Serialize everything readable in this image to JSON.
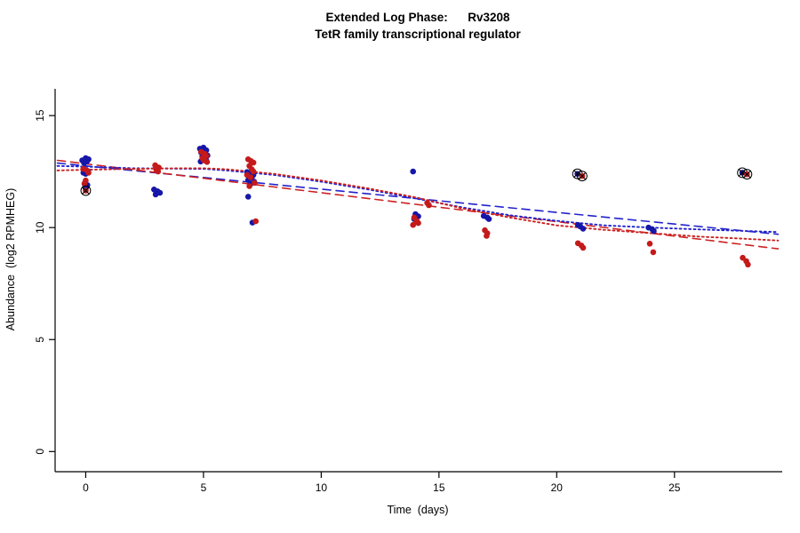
{
  "title": "Extended Log Phase:      Rv3208",
  "subtitle": "TetR family transcriptional regulator",
  "chart_data": {
    "type": "scatter",
    "title": "Extended Log Phase:      Rv3208",
    "subtitle": "TetR family transcriptional regulator",
    "xlabel": "Time  (days)",
    "ylabel": "Abundance  (log2 RPMHEG)",
    "xlim": [
      -1.3,
      29.5
    ],
    "ylim": [
      -0.9,
      17.9
    ],
    "xticks": [
      0,
      5,
      10,
      15,
      20,
      25
    ],
    "yticks": [
      0,
      5,
      10,
      15
    ],
    "grid": false,
    "legend": "none",
    "colors": {
      "blue": "#1616a8",
      "red": "#c41a1a",
      "blue_line": "#2222cc",
      "red_line": "#cc2222",
      "outlier_stroke": "#000000",
      "axis": "#000000"
    },
    "series": [
      {
        "name": "blue-points",
        "color_key": "blue",
        "points": [
          [
            -0.15,
            13.0
          ],
          [
            0.0,
            13.1
          ],
          [
            0.12,
            13.05
          ],
          [
            0.05,
            12.95
          ],
          [
            -0.07,
            12.88
          ],
          [
            0.1,
            12.5
          ],
          [
            -0.1,
            12.45
          ],
          [
            0.0,
            12.4
          ],
          [
            -0.05,
            11.95
          ],
          [
            0.07,
            11.9
          ],
          [
            0.0,
            11.72
          ],
          [
            2.9,
            11.7
          ],
          [
            3.05,
            11.62
          ],
          [
            3.15,
            11.55
          ],
          [
            2.97,
            11.48
          ],
          [
            4.85,
            13.52
          ],
          [
            5.0,
            13.57
          ],
          [
            5.12,
            13.45
          ],
          [
            4.9,
            13.35
          ],
          [
            5.05,
            13.3
          ],
          [
            5.17,
            13.22
          ],
          [
            4.95,
            13.18
          ],
          [
            5.02,
            13.08
          ],
          [
            5.12,
            13.0
          ],
          [
            4.88,
            12.95
          ],
          [
            6.85,
            12.48
          ],
          [
            7.0,
            12.42
          ],
          [
            7.12,
            12.35
          ],
          [
            6.95,
            12.3
          ],
          [
            7.05,
            12.22
          ],
          [
            6.9,
            12.12
          ],
          [
            7.15,
            12.05
          ],
          [
            7.0,
            11.95
          ],
          [
            6.9,
            11.38
          ],
          [
            7.08,
            10.22
          ],
          [
            13.9,
            12.5
          ],
          [
            14.0,
            10.6
          ],
          [
            14.12,
            10.5
          ],
          [
            13.95,
            10.38
          ],
          [
            16.9,
            10.52
          ],
          [
            17.05,
            10.45
          ],
          [
            17.12,
            10.38
          ],
          [
            20.9,
            10.12
          ],
          [
            21.0,
            10.05
          ],
          [
            21.12,
            9.95
          ],
          [
            23.9,
            10.0
          ],
          [
            24.05,
            9.93
          ],
          [
            24.12,
            9.85
          ]
        ]
      },
      {
        "name": "red-points",
        "color_key": "red",
        "points": [
          [
            -0.1,
            12.62
          ],
          [
            0.05,
            12.55
          ],
          [
            0.12,
            12.45
          ],
          [
            0.0,
            12.1
          ],
          [
            -0.05,
            11.97
          ],
          [
            2.95,
            12.78
          ],
          [
            3.1,
            12.68
          ],
          [
            3.0,
            12.58
          ],
          [
            3.07,
            12.5
          ],
          [
            4.9,
            13.38
          ],
          [
            5.05,
            13.3
          ],
          [
            5.12,
            13.2
          ],
          [
            4.95,
            13.1
          ],
          [
            5.02,
            13.0
          ],
          [
            5.15,
            12.93
          ],
          [
            6.9,
            13.05
          ],
          [
            7.02,
            12.97
          ],
          [
            7.12,
            12.9
          ],
          [
            6.95,
            12.75
          ],
          [
            7.05,
            12.6
          ],
          [
            7.12,
            12.5
          ],
          [
            6.85,
            12.35
          ],
          [
            7.0,
            12.25
          ],
          [
            7.17,
            12.0
          ],
          [
            6.95,
            11.85
          ],
          [
            7.22,
            10.28
          ],
          [
            14.5,
            11.1
          ],
          [
            14.57,
            11.0
          ],
          [
            13.95,
            10.45
          ],
          [
            14.05,
            10.3
          ],
          [
            14.12,
            10.2
          ],
          [
            13.9,
            10.12
          ],
          [
            16.95,
            9.88
          ],
          [
            17.05,
            9.75
          ],
          [
            17.02,
            9.63
          ],
          [
            20.9,
            9.3
          ],
          [
            21.05,
            9.2
          ],
          [
            21.12,
            9.1
          ],
          [
            23.95,
            9.28
          ],
          [
            24.1,
            8.9
          ],
          [
            27.9,
            8.65
          ],
          [
            28.05,
            8.5
          ],
          [
            28.12,
            8.35
          ]
        ]
      }
    ],
    "outliers": [
      {
        "x": 0.0,
        "y": 11.65,
        "color_key": "red"
      },
      {
        "x": 20.88,
        "y": 12.4,
        "color_key": "blue"
      },
      {
        "x": 21.08,
        "y": 12.3,
        "color_key": "red"
      },
      {
        "x": 27.88,
        "y": 12.45,
        "color_key": "blue"
      },
      {
        "x": 28.08,
        "y": 12.38,
        "color_key": "red"
      }
    ],
    "fit_lines": [
      {
        "name": "blue-dashed-fit",
        "style": "dashed",
        "color_key": "blue_line",
        "points": [
          [
            -1.2,
            12.88
          ],
          [
            29.4,
            9.7
          ]
        ]
      },
      {
        "name": "red-dashed-fit",
        "style": "dashed",
        "color_key": "red_line",
        "points": [
          [
            -1.2,
            13.0
          ],
          [
            29.4,
            9.05
          ]
        ]
      },
      {
        "name": "blue-dotted-fit",
        "style": "dotted",
        "color_key": "blue_line",
        "points": [
          [
            -1.2,
            12.75
          ],
          [
            0,
            12.72
          ],
          [
            2,
            12.65
          ],
          [
            4,
            12.63
          ],
          [
            5,
            12.62
          ],
          [
            6,
            12.55
          ],
          [
            8,
            12.35
          ],
          [
            10,
            12.05
          ],
          [
            12,
            11.7
          ],
          [
            14,
            11.3
          ],
          [
            16,
            10.9
          ],
          [
            18,
            10.55
          ],
          [
            20,
            10.3
          ],
          [
            22,
            10.1
          ],
          [
            24,
            10.0
          ],
          [
            26,
            9.92
          ],
          [
            28,
            9.85
          ],
          [
            29.4,
            9.8
          ]
        ]
      },
      {
        "name": "red-dotted-fit",
        "style": "dotted",
        "color_key": "red_line",
        "points": [
          [
            -1.2,
            12.55
          ],
          [
            0,
            12.58
          ],
          [
            2,
            12.62
          ],
          [
            4,
            12.65
          ],
          [
            5,
            12.65
          ],
          [
            6,
            12.6
          ],
          [
            8,
            12.4
          ],
          [
            10,
            12.1
          ],
          [
            12,
            11.75
          ],
          [
            14,
            11.35
          ],
          [
            16,
            10.85
          ],
          [
            18,
            10.45
          ],
          [
            20,
            10.1
          ],
          [
            22,
            9.9
          ],
          [
            24,
            9.75
          ],
          [
            26,
            9.6
          ],
          [
            28,
            9.5
          ],
          [
            29.4,
            9.42
          ]
        ]
      }
    ]
  }
}
